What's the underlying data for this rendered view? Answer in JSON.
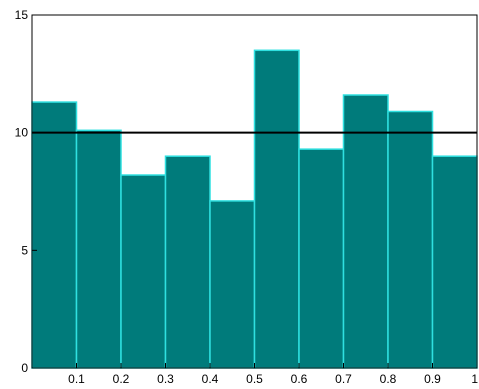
{
  "chart_data": {
    "type": "bar",
    "bins": [
      {
        "from": 0.0,
        "to": 0.1,
        "value": 11.3
      },
      {
        "from": 0.1,
        "to": 0.2,
        "value": 10.1
      },
      {
        "from": 0.2,
        "to": 0.3,
        "value": 8.2
      },
      {
        "from": 0.3,
        "to": 0.4,
        "value": 9.0
      },
      {
        "from": 0.4,
        "to": 0.5,
        "value": 7.1
      },
      {
        "from": 0.5,
        "to": 0.6,
        "value": 13.5
      },
      {
        "from": 0.6,
        "to": 0.7,
        "value": 9.3
      },
      {
        "from": 0.7,
        "to": 0.8,
        "value": 11.6
      },
      {
        "from": 0.8,
        "to": 0.9,
        "value": 10.9
      },
      {
        "from": 0.9,
        "to": 1.0,
        "value": 9.0
      }
    ],
    "reference_line": 10,
    "xlim": [
      0,
      1
    ],
    "ylim": [
      0,
      15
    ],
    "x_ticks": [
      {
        "value": 0.1,
        "label": "0.1"
      },
      {
        "value": 0.2,
        "label": "0.2"
      },
      {
        "value": 0.3,
        "label": "0.3"
      },
      {
        "value": 0.4,
        "label": "0.4"
      },
      {
        "value": 0.5,
        "label": "0.5"
      },
      {
        "value": 0.6,
        "label": "0.6"
      },
      {
        "value": 0.7,
        "label": "0.7"
      },
      {
        "value": 0.8,
        "label": "0.8"
      },
      {
        "value": 0.9,
        "label": "0.9"
      },
      {
        "value": 1.0,
        "label": "1"
      }
    ],
    "y_ticks": [
      {
        "value": 0,
        "label": "0"
      },
      {
        "value": 5,
        "label": "5"
      },
      {
        "value": 10,
        "label": "10"
      },
      {
        "value": 15,
        "label": "15"
      }
    ],
    "title": "",
    "xlabel": "",
    "ylabel": "",
    "grid": false,
    "colors": {
      "bar_fill": "#007B7B",
      "bar_edge": "#2FE0E0",
      "reference_line": "#000000",
      "axes": "#000000"
    }
  }
}
